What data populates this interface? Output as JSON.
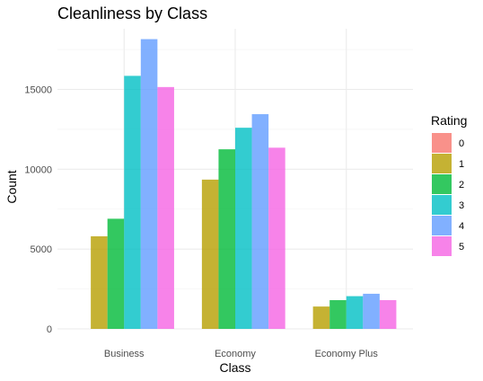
{
  "chart_data": {
    "type": "bar",
    "title": "Cleanliness by Class",
    "xlabel": "Class",
    "ylabel": "Count",
    "categories": [
      "Business",
      "Economy",
      "Economy Plus"
    ],
    "ylim": [
      0,
      18800
    ],
    "y_ticks": [
      0,
      5000,
      10000,
      15000
    ],
    "y_tick_labels": [
      "0",
      "5000",
      "10000",
      "15000"
    ],
    "grid": true,
    "legend": {
      "title": "Rating",
      "position": "right"
    },
    "series": [
      {
        "name": "0",
        "color": "#F8766D",
        "values": [
          0,
          0,
          0
        ]
      },
      {
        "name": "1",
        "color": "#B79F00",
        "values": [
          5800,
          9350,
          1400
        ]
      },
      {
        "name": "2",
        "color": "#00BA38",
        "values": [
          6900,
          11250,
          1800
        ]
      },
      {
        "name": "3",
        "color": "#00BFC4",
        "values": [
          15850,
          12600,
          2050
        ]
      },
      {
        "name": "4",
        "color": "#619CFF",
        "values": [
          18150,
          13450,
          2200
        ]
      },
      {
        "name": "5",
        "color": "#F564E3",
        "values": [
          15150,
          11350,
          1800
        ]
      }
    ]
  }
}
